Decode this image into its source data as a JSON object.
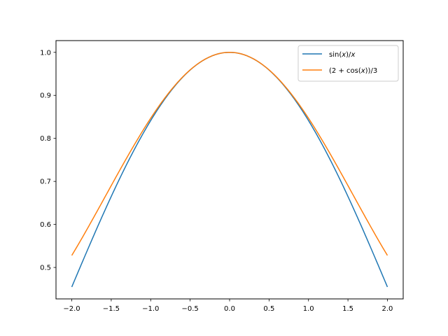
{
  "chart_data": {
    "type": "line",
    "title": "",
    "xlabel": "",
    "ylabel": "",
    "xlim": [
      -2.2,
      2.2
    ],
    "ylim": [
      0.4269,
      1.0273
    ],
    "xticks": [
      -2.0,
      -1.5,
      -1.0,
      -0.5,
      0.0,
      0.5,
      1.0,
      1.5,
      2.0
    ],
    "xtick_labels": [
      "−2.0",
      "−1.5",
      "−1.0",
      "−0.5",
      "0.0",
      "0.5",
      "1.0",
      "1.5",
      "2.0"
    ],
    "yticks": [
      0.5,
      0.6,
      0.7,
      0.8,
      0.9,
      1.0
    ],
    "ytick_labels": [
      "0.5",
      "0.6",
      "0.7",
      "0.8",
      "0.9",
      "1.0"
    ],
    "grid": false,
    "legend_position": "top-right",
    "series": [
      {
        "name": "sin(x)/x",
        "color": "#1f77b4",
        "x": [
          -2.0,
          -1.75,
          -1.5,
          -1.25,
          -1.0,
          -0.75,
          -0.5,
          -0.25,
          0.0,
          0.25,
          0.5,
          0.75,
          1.0,
          1.25,
          1.5,
          1.75,
          2.0
        ],
        "y": [
          0.4546,
          0.5605,
          0.665,
          0.7592,
          0.8415,
          0.9089,
          0.9589,
          0.9896,
          1.0,
          0.9896,
          0.9589,
          0.9089,
          0.8415,
          0.7592,
          0.665,
          0.5605,
          0.4546
        ]
      },
      {
        "name": "(2 + cos(x))/3",
        "color": "#ff7f0e",
        "x": [
          -2.0,
          -1.75,
          -1.5,
          -1.25,
          -1.0,
          -0.75,
          -0.5,
          -0.25,
          0.0,
          0.25,
          0.5,
          0.75,
          1.0,
          1.25,
          1.5,
          1.75,
          2.0
        ],
        "y": [
          0.5279,
          0.6066,
          0.6903,
          0.7718,
          0.8468,
          0.9106,
          0.9592,
          0.9896,
          1.0,
          0.9896,
          0.9592,
          0.9106,
          0.8468,
          0.7718,
          0.6903,
          0.6066,
          0.5279
        ]
      }
    ]
  }
}
